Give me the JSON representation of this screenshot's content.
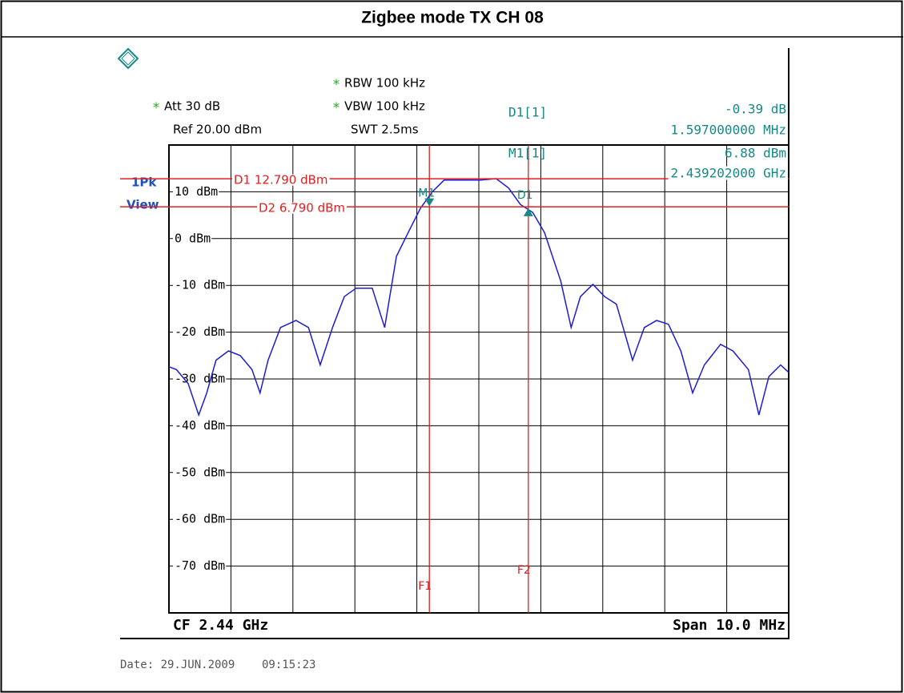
{
  "chart_data": {
    "type": "line",
    "title": "Zigbee mode TX CH 08",
    "trace_mode": [
      "1Pk",
      "View"
    ],
    "settings": [
      {
        "flag": "*",
        "text": "RBW 100 kHz"
      },
      {
        "flag": "*",
        "text": "VBW 100 kHz"
      },
      {
        "text": "SWT 2.5ms"
      },
      {
        "flag": "*",
        "text": "Att 30 dB"
      },
      {
        "text": "Ref 20.00 dBm"
      }
    ],
    "readouts": [
      [
        "D1[1]",
        "-0.39 dB",
        "1.597000000 MHz"
      ],
      [
        "M1[1]",
        "6.88 dBm",
        "2.439202000 GHz"
      ]
    ],
    "center_label": "CF 2.44 GHz",
    "span_label": "Span 10.0 MHz",
    "date_label": "Date: 29.JUN.2009    09:15:23",
    "xlim": [
      2.435,
      2.445
    ],
    "ylim": [
      -80,
      20
    ],
    "yticks": [
      {
        "value": 10,
        "label": "10 dBm"
      },
      {
        "value": 0,
        "label": "0 dBm"
      },
      {
        "value": -10,
        "label": "-10 dBm"
      },
      {
        "value": -20,
        "label": "-20 dBm"
      },
      {
        "value": -30,
        "label": "-30 dBm"
      },
      {
        "value": -40,
        "label": "-40 dBm"
      },
      {
        "value": -50,
        "label": "-50 dBm"
      },
      {
        "value": -60,
        "label": "-60 dBm"
      },
      {
        "value": -70,
        "label": "-70 dBm"
      }
    ],
    "grid": true,
    "x": [
      2.435,
      2.43512,
      2.43531,
      2.43548,
      2.43561,
      2.43576,
      2.43596,
      2.43615,
      2.43634,
      2.43647,
      2.4366,
      2.4368,
      2.43705,
      2.43725,
      2.43744,
      2.43764,
      2.43783,
      2.43802,
      2.43828,
      2.43848,
      2.43867,
      2.43886,
      2.43906,
      2.43925,
      2.43944,
      2.4397,
      2.44003,
      2.44028,
      2.44048,
      2.44067,
      2.44087,
      2.44106,
      2.44132,
      2.44149,
      2.44164,
      2.44184,
      2.44203,
      2.44222,
      2.44248,
      2.44267,
      2.44287,
      2.44306,
      2.44326,
      2.44345,
      2.44364,
      2.4439,
      2.4441,
      2.44435,
      2.44452,
      2.44468,
      2.44487,
      2.445
    ],
    "series": [
      {
        "color": "#1c1cd4",
        "values": [
          -27.4,
          -28,
          -31,
          -37.7,
          -33,
          -26,
          -24,
          -25,
          -28,
          -33,
          -26,
          -19,
          -17.5,
          -19,
          -27,
          -19,
          -12.4,
          -10.6,
          -10.6,
          -19,
          -3.8,
          1.3,
          6.5,
          10,
          12.5,
          12.5,
          12.5,
          12.8,
          10.8,
          7.3,
          5.6,
          1.3,
          -9,
          -19,
          -12.4,
          -9.8,
          -12.4,
          -14,
          -26,
          -19,
          -17.5,
          -18.3,
          -24,
          -33,
          -27,
          -22.6,
          -24,
          -28,
          -37.7,
          -29.5,
          -27,
          -28.6
        ]
      }
    ],
    "display_lines": [
      {
        "label": "D1 12.790 dBm",
        "value": 12.79,
        "color": "#e02020"
      },
      {
        "label": "D2 6.790 dBm",
        "value": 6.79,
        "color": "#e02020"
      }
    ],
    "frequency_lines": [
      {
        "label": "F1",
        "value": 2.439202,
        "color": "#e02020"
      },
      {
        "label": "F2",
        "value": 2.440799,
        "color": "#e02020"
      }
    ],
    "markers": [
      {
        "label": "M1",
        "x": 2.439202,
        "y": 6.88,
        "color": "#178888",
        "dir": "down"
      },
      {
        "label": "D1",
        "x": 2.440799,
        "y": 6.49,
        "color": "#178888",
        "dir": "up"
      }
    ]
  }
}
